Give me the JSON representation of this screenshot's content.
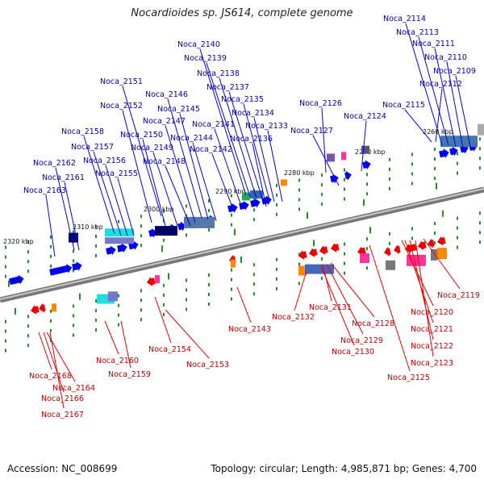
{
  "header": {
    "title": "Nocardioides sp. JS614, complete genome"
  },
  "footer": {
    "accession": "Accession: NC_008699",
    "stats": "Topology: circular; Length: 4,985,871 bp; Genes: 4,700"
  },
  "colors": {
    "forward_gene": "#0000ee",
    "reverse_gene": "#ee0000",
    "backbone": "#999999",
    "tick": "#2a8a2a"
  },
  "kbp_labels": [
    {
      "id": "2260",
      "text": "2260 kbp"
    },
    {
      "id": "2270",
      "text": "2270 kbp"
    },
    {
      "id": "2280",
      "text": "2280 kbp"
    },
    {
      "id": "2290",
      "text": "2290 kbp"
    },
    {
      "id": "2300",
      "text": "2300 kbp"
    },
    {
      "id": "2310",
      "text": "2310 kbp"
    },
    {
      "id": "2320",
      "text": "2320 kbp"
    }
  ],
  "forward_genes": [
    "Noca_2114",
    "Noca_2113",
    "Noca_2111",
    "Noca_2110",
    "Noca_2109",
    "Noca_2112",
    "Noca_2115",
    "Noca_2126",
    "Noca_2124",
    "Noca_2127",
    "Noca_2140",
    "Noca_2139",
    "Noca_2138",
    "Noca_2137",
    "Noca_2135",
    "Noca_2134",
    "Noca_2133",
    "Noca_2141",
    "Noca_2136",
    "Noca_2142",
    "Noca_2151",
    "Noca_2146",
    "Noca_2145",
    "Noca_2152",
    "Noca_2147",
    "Noca_2150",
    "Noca_2144",
    "Noca_2149",
    "Noca_2148",
    "Noca_2158",
    "Noca_2157",
    "Noca_2156",
    "Noca_2155",
    "Noca_2162",
    "Noca_2161",
    "Noca_2163"
  ],
  "reverse_genes": [
    "Noca_2119",
    "Noca_2120",
    "Noca_2121",
    "Noca_2122",
    "Noca_2123",
    "Noca_2125",
    "Noca_2131",
    "Noca_2128",
    "Noca_2129",
    "Noca_2130",
    "Noca_2132",
    "Noca_2143",
    "Noca_2153",
    "Noca_2154",
    "Noca_2160",
    "Noca_2159",
    "Noca_2168",
    "Noca_2164",
    "Noca_2166",
    "Noca_2167"
  ]
}
